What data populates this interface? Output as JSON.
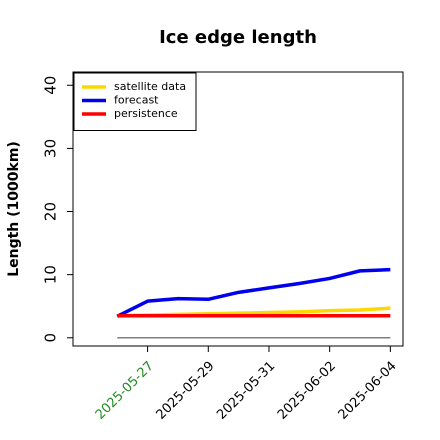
{
  "chart_data": {
    "type": "line",
    "title": "Ice edge length",
    "ylabel": "Length (1000km)",
    "x": [
      "2025-05-26",
      "2025-05-27",
      "2025-05-28",
      "2025-05-29",
      "2025-05-30",
      "2025-05-31",
      "2025-06-01",
      "2025-06-02",
      "2025-06-03",
      "2025-06-04"
    ],
    "series": [
      {
        "name": "satellite data",
        "color": "#ffd700",
        "values": [
          3.5,
          3.6,
          3.7,
          3.8,
          3.9,
          4.0,
          4.1,
          4.3,
          4.4,
          4.7
        ]
      },
      {
        "name": "forecast",
        "color": "#0000ee",
        "values": [
          3.4,
          5.8,
          6.2,
          6.1,
          7.2,
          7.9,
          8.6,
          9.4,
          10.6,
          10.8
        ]
      },
      {
        "name": "persistence",
        "color": "#ff0000",
        "values": [
          3.5,
          3.5,
          3.5,
          3.5,
          3.5,
          3.5,
          3.5,
          3.5,
          3.5,
          3.5
        ]
      }
    ],
    "hline": {
      "value": 0,
      "color": "#808080"
    },
    "xlim": [
      "2025-05-24T13:00",
      "2025-06-04T10:00"
    ],
    "xticks": [
      "2025-05-27",
      "2025-05-29",
      "2025-05-31",
      "2025-06-02",
      "2025-06-04"
    ],
    "xtick_label_colors": [
      "#228b22",
      "#000000",
      "#000000",
      "#000000",
      "#000000"
    ],
    "ylim": [
      -1.3,
      42.1
    ],
    "yticks": [
      0,
      10,
      20,
      30,
      40
    ],
    "legend": "upper-left"
  }
}
